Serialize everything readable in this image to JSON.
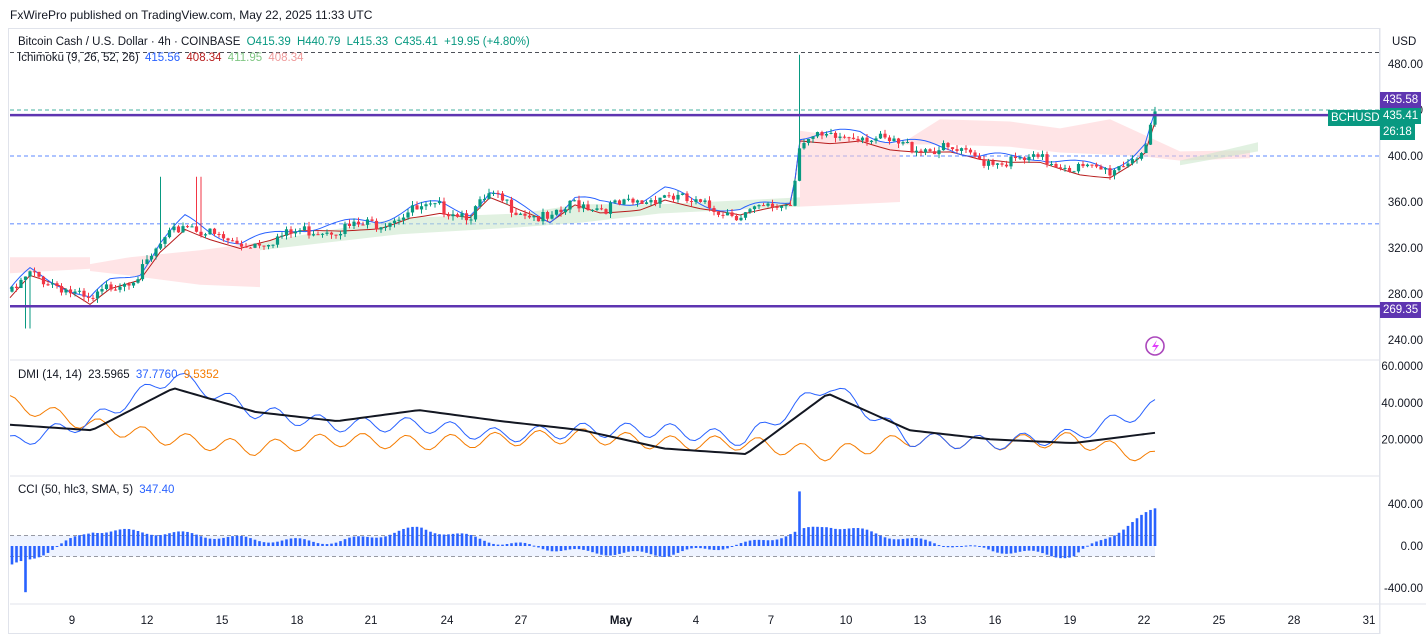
{
  "publisher": "FxWirePro published on TradingView.com, May 22, 2025 11:33 UTC",
  "symbol": {
    "title": "Bitcoin Cash / U.S. Dollar · 4h · COINBASE",
    "open": "O415.39",
    "high": "H440.79",
    "low": "L415.33",
    "close": "C435.41",
    "change": "+19.95 (+4.80%)",
    "ticker": "BCHUSD",
    "price": "435.41",
    "countdown": "26:18"
  },
  "ichimoku": {
    "label": "Ichimoku (9, 26, 52, 26)",
    "v1": "415.56",
    "v2": "408.34",
    "v3": "411.95",
    "v4": "408.34"
  },
  "dmi": {
    "label": "DMI (14, 14)",
    "adx": "23.5965",
    "plus": "37.7760",
    "minus": "9.5352"
  },
  "cci": {
    "label": "CCI (50, hlc3, SMA, 5)",
    "value": "347.40"
  },
  "currency": "USD",
  "price_axis": [
    "480.00",
    "440.00",
    "400.00",
    "360.00",
    "320.00",
    "280.00",
    "240.00"
  ],
  "level_tags": {
    "top": "435.58",
    "bottom": "269.35"
  },
  "dmi_axis": [
    "60.0000",
    "40.0000",
    "20.0000"
  ],
  "cci_axis": [
    "400.00",
    "0.00",
    "-400.00"
  ],
  "time_axis": [
    "9",
    "12",
    "15",
    "18",
    "21",
    "24",
    "27",
    "May",
    "4",
    "7",
    "10",
    "13",
    "16",
    "19",
    "22",
    "25",
    "28",
    "31"
  ],
  "colors": {
    "purple": "#5e35b1",
    "blue": "#2962ff",
    "red": "#b71c1c",
    "green": "#089981",
    "candle_down": "#f23645",
    "orange": "#f57c00",
    "cloud_green": "#c8e6c9",
    "cloud_red": "#ffcdd2"
  },
  "chart_data": [
    {
      "type": "candlestick",
      "title": "Bitcoin Cash / U.S. Dollar · 4h · COINBASE",
      "ylim": [
        230,
        500
      ],
      "x": [
        "9",
        "12",
        "15",
        "18",
        "21",
        "24",
        "27",
        "May",
        "4",
        "7",
        "10",
        "13",
        "16",
        "19",
        "22"
      ],
      "close": [
        282,
        325,
        340,
        322,
        333,
        352,
        360,
        362,
        357,
        385,
        425,
        418,
        398,
        400,
        435
      ],
      "horizontal_levels": [
        435.58,
        269.35
      ]
    },
    {
      "type": "line",
      "title": "DMI (14, 14)",
      "ylim": [
        0,
        60
      ],
      "x": [
        "9",
        "12",
        "15",
        "18",
        "21",
        "24",
        "27",
        "May",
        "4",
        "7",
        "10",
        "13",
        "16",
        "19",
        "22"
      ],
      "series": [
        {
          "name": "ADX",
          "values": [
            28,
            25,
            48,
            35,
            30,
            36,
            30,
            25,
            15,
            12,
            45,
            25,
            20,
            18,
            23.6
          ]
        },
        {
          "name": "+DI",
          "values": [
            18,
            30,
            55,
            35,
            28,
            28,
            22,
            25,
            25,
            20,
            50,
            20,
            18,
            22,
            37.8
          ]
        },
        {
          "name": "-DI",
          "values": [
            40,
            28,
            20,
            15,
            20,
            18,
            20,
            22,
            18,
            18,
            12,
            20,
            18,
            20,
            9.5
          ]
        }
      ]
    },
    {
      "type": "bar",
      "title": "CCI (50, hlc3, SMA, 5)",
      "ylim": [
        -450,
        550
      ],
      "x": [
        "9",
        "12",
        "15",
        "18",
        "21",
        "24",
        "27",
        "May",
        "4",
        "7",
        "10",
        "13",
        "16",
        "19",
        "22"
      ],
      "values": [
        -200,
        150,
        120,
        60,
        40,
        170,
        30,
        -60,
        -80,
        20,
        200,
        60,
        -40,
        -100,
        347.4
      ]
    }
  ]
}
